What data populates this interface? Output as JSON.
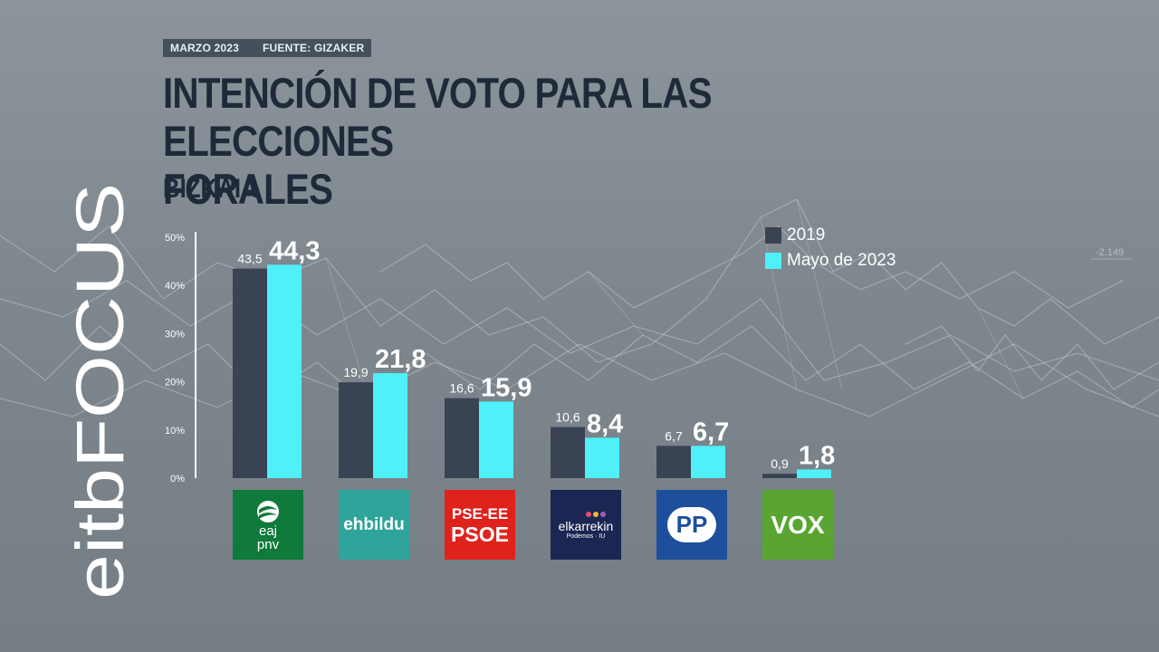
{
  "header": {
    "date_label": "MARZO 2023",
    "source_label": "FUENTE: GIZAKER",
    "title": "INTENCIÓN DE VOTO PARA LAS ELECCIONES\nFORALES",
    "subtitle": "BIZKAIA"
  },
  "brand": {
    "logo_text": "eitbFOCUS"
  },
  "background": {
    "watermark_value": "-2.149"
  },
  "legend": {
    "items": [
      "2019",
      "Mayo de 2023"
    ]
  },
  "colors": {
    "series_2019": "#3a4353",
    "series_2023": "#4ff0f8",
    "axis": "#ffffff"
  },
  "parties": [
    {
      "logo_text": [
        "eaj",
        "pnv"
      ],
      "logo_bg": "#0f7a3a"
    },
    {
      "logo_text": [
        "ehbildu"
      ],
      "logo_bg": "#2fa49a"
    },
    {
      "logo_text": [
        "PSE-EE",
        "PSOE"
      ],
      "logo_bg": "#e0221c"
    },
    {
      "logo_text": [
        "elkarrekin",
        "Podemos · IU"
      ],
      "logo_bg": "#1b2752"
    },
    {
      "logo_text": [
        "PP"
      ],
      "logo_bg": "#1d4f9c"
    },
    {
      "logo_text": [
        "VOX"
      ],
      "logo_bg": "#5aa531"
    }
  ],
  "chart_data": {
    "type": "bar",
    "categories": [
      "EAJ-PNV",
      "EH Bildu",
      "PSE-EE PSOE",
      "Elkarrekin Podemos",
      "PP",
      "VOX"
    ],
    "series": [
      {
        "name": "2019",
        "values": [
          43.5,
          19.9,
          16.6,
          10.6,
          6.7,
          0.9
        ],
        "labels": [
          "43,5",
          "19,9",
          "16,6",
          "10,6",
          "6,7",
          "0,9"
        ]
      },
      {
        "name": "Mayo de 2023",
        "values": [
          44.3,
          21.8,
          15.9,
          8.4,
          6.7,
          1.8
        ],
        "labels": [
          "44,3",
          "21,8",
          "15,9",
          "8,4",
          "6,7",
          "1,8"
        ]
      }
    ],
    "yticks": [
      "0%",
      "10%",
      "20%",
      "30%",
      "40%",
      "50%"
    ],
    "ylim": [
      0,
      50
    ],
    "legend_position": "top-right",
    "grid": false
  }
}
